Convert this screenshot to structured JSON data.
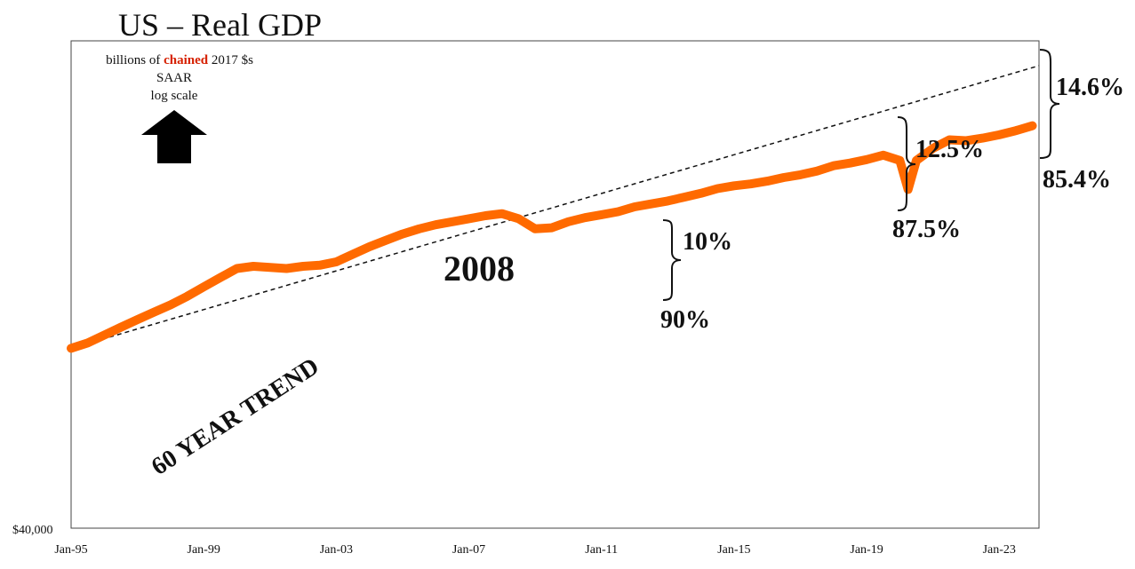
{
  "chart_data": {
    "type": "line",
    "title": "US – Real GDP",
    "units_note": {
      "prefix": "billions of ",
      "highlight": "chained",
      "suffix": " 2017 $s",
      "line2": "SAAR",
      "line3": "log scale"
    },
    "accent_color": "#ff6a00",
    "highlight_color": "#d62000",
    "y_scale": "log",
    "ylabel_min": "$40,000",
    "x_tick_labels": [
      "Jan-95",
      "Jan-99",
      "Jan-03",
      "Jan-07",
      "Jan-11",
      "Jan-15",
      "Jan-19",
      "Jan-23"
    ],
    "x_range": [
      1995.0,
      2024.2
    ],
    "series": [
      {
        "name": "Real GDP",
        "x": [
          1995.0,
          1995.5,
          1996.0,
          1996.5,
          1997.0,
          1997.5,
          1998.0,
          1998.5,
          1999.0,
          1999.5,
          2000.0,
          2000.5,
          2001.0,
          2001.5,
          2002.0,
          2002.5,
          2003.0,
          2003.5,
          2004.0,
          2004.5,
          2005.0,
          2005.5,
          2006.0,
          2006.5,
          2007.0,
          2007.5,
          2008.0,
          2008.5,
          2009.0,
          2009.5,
          2010.0,
          2010.5,
          2011.0,
          2011.5,
          2012.0,
          2012.5,
          2013.0,
          2013.5,
          2014.0,
          2014.5,
          2015.0,
          2015.5,
          2016.0,
          2016.5,
          2017.0,
          2017.5,
          2018.0,
          2018.5,
          2019.0,
          2019.5,
          2020.0,
          2020.25,
          2020.5,
          2021.0,
          2021.5,
          2022.0,
          2022.5,
          2023.0,
          2023.5,
          2024.0
        ],
        "y": [
          16.5,
          16.7,
          17.0,
          17.3,
          17.6,
          17.9,
          18.2,
          18.55,
          18.95,
          19.35,
          19.75,
          19.85,
          19.8,
          19.75,
          19.85,
          19.9,
          20.05,
          20.4,
          20.75,
          21.05,
          21.35,
          21.6,
          21.8,
          21.95,
          22.1,
          22.25,
          22.35,
          22.1,
          21.6,
          21.65,
          21.95,
          22.15,
          22.3,
          22.45,
          22.7,
          22.85,
          23.0,
          23.2,
          23.4,
          23.65,
          23.8,
          23.9,
          24.05,
          24.25,
          24.4,
          24.6,
          24.9,
          25.05,
          25.25,
          25.5,
          25.2,
          23.6,
          25.2,
          25.9,
          26.4,
          26.35,
          26.5,
          26.7,
          26.95,
          27.25
        ]
      }
    ],
    "trend": {
      "name": "60 YEAR TREND",
      "start": {
        "x": 1995.0,
        "y": 16.5
      },
      "end": {
        "x": 2024.2,
        "y": 31.2
      }
    },
    "annotations": {
      "year_2008": "2008",
      "gap_2013": {
        "x": 2013.0,
        "gap": "10%",
        "ratio": "90%"
      },
      "gap_2020": {
        "x": 2020.2,
        "gap": "12.5%",
        "ratio": "87.5%"
      },
      "gap_2024": {
        "x": 2024.2,
        "gap": "14.6%",
        "ratio": "85.4%"
      }
    }
  }
}
